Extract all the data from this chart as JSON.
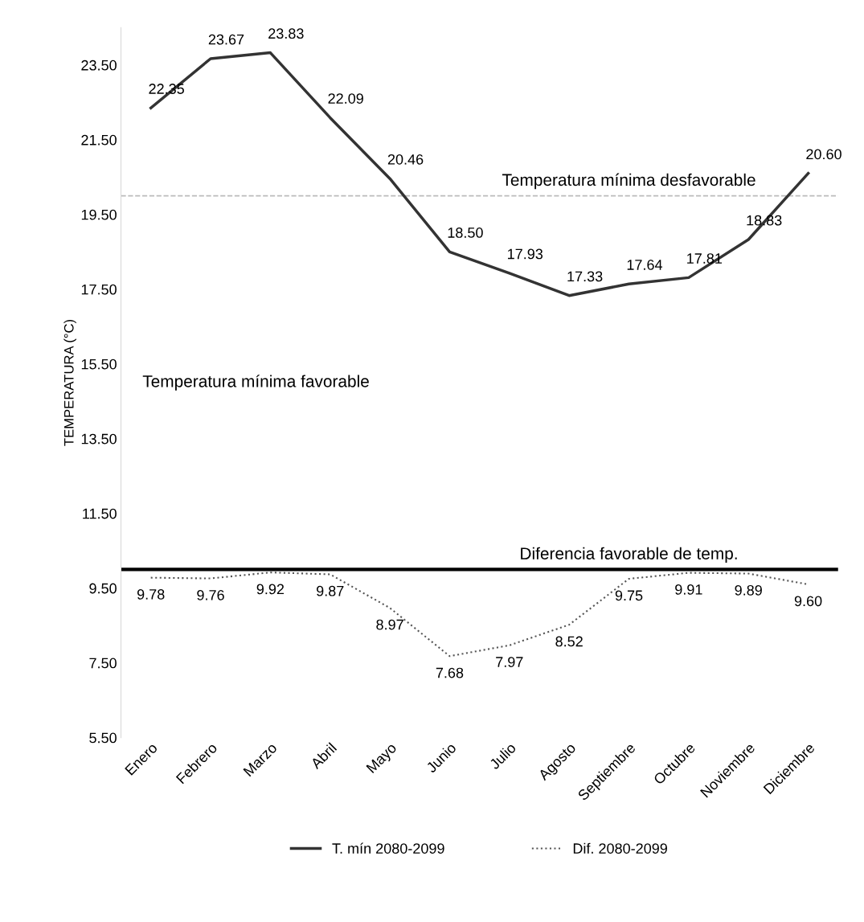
{
  "chart_data": {
    "type": "line",
    "ylabel": "TEMPERATURA (°C)",
    "categories": [
      "Enero",
      "Febrero",
      "Marzo",
      "Abril",
      "Mayo",
      "Junio",
      "Julio",
      "Agosto",
      "Septiembre",
      "Octubre",
      "Noviembre",
      "Diciembre"
    ],
    "series": [
      {
        "name": "T. mín 2080-2099",
        "color": "#333333",
        "line_style": "solid",
        "values": [
          22.35,
          23.67,
          23.83,
          22.09,
          20.46,
          18.5,
          17.93,
          17.33,
          17.64,
          17.81,
          18.83,
          20.6
        ],
        "value_labels": [
          "22.35",
          "23.67",
          "23.83",
          "22.09",
          "20.46",
          "18.50",
          "17.93",
          "17.33",
          "17.64",
          "17.81",
          "18.83",
          "20.60"
        ]
      },
      {
        "name": "Dif. 2080-2099",
        "color": "#555555",
        "line_style": "dotted",
        "values": [
          9.78,
          9.76,
          9.92,
          9.87,
          8.97,
          7.68,
          7.97,
          8.52,
          9.75,
          9.91,
          9.89,
          9.6
        ],
        "value_labels": [
          "9.78",
          "9.76",
          "9.92",
          "9.87",
          "8.97",
          "7.68",
          "7.97",
          "8.52",
          "9.75",
          "9.91",
          "9.89",
          "9.60"
        ]
      }
    ],
    "ylim": [
      5.5,
      24.5
    ],
    "yticks": [
      {
        "value": 5.5,
        "label": "5.50"
      },
      {
        "value": 7.5,
        "label": "7.50"
      },
      {
        "value": 9.5,
        "label": "9.50"
      },
      {
        "value": 11.5,
        "label": "11.50"
      },
      {
        "value": 13.5,
        "label": "13.50"
      },
      {
        "value": 15.5,
        "label": "15.50"
      },
      {
        "value": 17.5,
        "label": "17.50"
      },
      {
        "value": 19.5,
        "label": "19.50"
      },
      {
        "value": 21.5,
        "label": "21.50"
      },
      {
        "value": 23.5,
        "label": "23.50"
      }
    ],
    "ref_lines": [
      {
        "axis": "y",
        "value": 20,
        "label": "Temperatura mínima desfavorable",
        "color": "#bbbbbb",
        "line_style": "dashed"
      },
      {
        "axis": "y",
        "value": 10,
        "label": "Diferencia favorable de temp.",
        "color": "#000000",
        "line_style": "solid"
      }
    ],
    "annotations": [
      "Temperatura mínima favorable"
    ],
    "grid": false,
    "legend": "bottom",
    "marker": "none"
  }
}
